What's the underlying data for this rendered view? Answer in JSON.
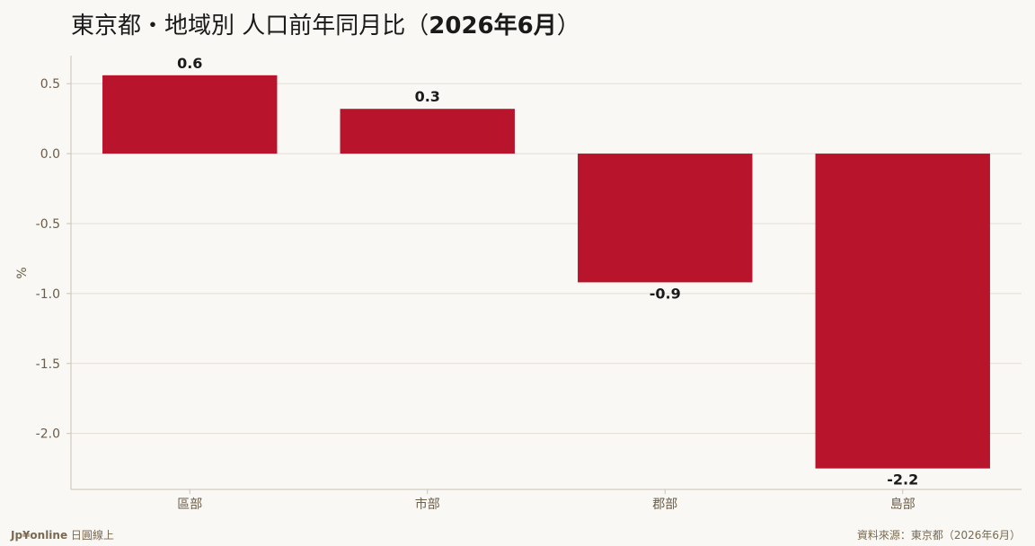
{
  "title": {
    "main": "東京都・地域別 人口前年同月比（",
    "period": "2026年6月",
    "close": "）"
  },
  "footer": {
    "brand": "Jp¥online",
    "brand_suffix": " 日圓線上",
    "source": "資料來源：東京都（2026年6月）"
  },
  "colors": {
    "bar": "#b8142c",
    "grid": "#e2ddd3",
    "axis": "#c9c2b4",
    "tick_text": "#6b5d48",
    "label_text": "#1a1a1a"
  },
  "chart_data": {
    "type": "bar",
    "categories": [
      "區部",
      "市部",
      "郡部",
      "島部"
    ],
    "values": [
      0.56,
      0.32,
      -0.92,
      -2.25
    ],
    "data_labels": [
      "0.6",
      "0.3",
      "-0.9",
      "-2.2"
    ],
    "title": "東京都・地域別 人口前年同月比（2026年6月）",
    "xlabel": "",
    "ylabel": "%",
    "ylim": [
      -2.4,
      0.7
    ],
    "yticks": [
      0.5,
      0.0,
      -0.5,
      -1.0,
      -1.5,
      -2.0
    ],
    "ytick_labels": [
      "0.5",
      "0.0",
      "-0.5",
      "-1.0",
      "-1.5",
      "-2.0"
    ],
    "grid": true,
    "legend": "none"
  }
}
